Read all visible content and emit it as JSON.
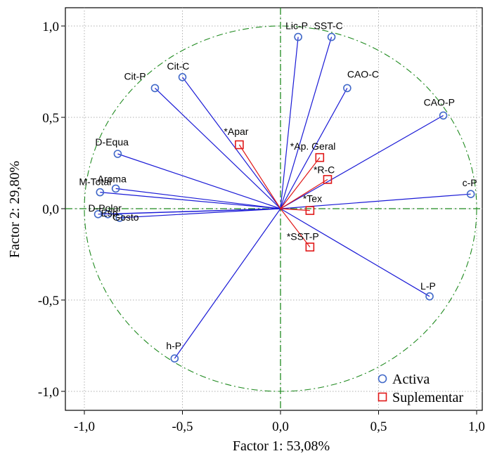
{
  "chart_data": {
    "type": "scatter",
    "subtype": "correlation-circle",
    "title": "",
    "xlabel": "Factor 1: 53,08%",
    "ylabel": "Factor 2: 29,80%",
    "xlim": [
      -1.05,
      1.05
    ],
    "ylim": [
      -1.1,
      1.1
    ],
    "xticks": [
      -1.0,
      -0.5,
      0.0,
      0.5,
      1.0
    ],
    "xtick_labels": [
      "-1,0",
      "-0,5",
      "0,0",
      "0,5",
      "1,0"
    ],
    "yticks": [
      -1.0,
      -0.5,
      0.0,
      0.5,
      1.0
    ],
    "ytick_labels": [
      "-1,0",
      "-0,5",
      "0,0",
      "0,5",
      "1,0"
    ],
    "grid": true,
    "unit_circle": true,
    "legend_position": "bottom-right",
    "series": [
      {
        "name": "Activa",
        "marker": "circle",
        "marker_color": "#4169c8",
        "vector_color": "#1a1ad6",
        "points": [
          {
            "label": "Lic-P",
            "x": 0.09,
            "y": 0.94
          },
          {
            "label": "SST-C",
            "x": 0.26,
            "y": 0.94
          },
          {
            "label": "CAO-C",
            "x": 0.34,
            "y": 0.66
          },
          {
            "label": "Cit-C",
            "x": -0.5,
            "y": 0.72
          },
          {
            "label": "Cit-P",
            "x": -0.64,
            "y": 0.66
          },
          {
            "label": "CAO-P",
            "x": 0.83,
            "y": 0.51
          },
          {
            "label": "D-Equa",
            "x": -0.83,
            "y": 0.3
          },
          {
            "label": "Aroma",
            "x": -0.84,
            "y": 0.11
          },
          {
            "label": "M-Total",
            "x": -0.92,
            "y": 0.09
          },
          {
            "label": "c-P",
            "x": 0.97,
            "y": 0.08
          },
          {
            "label": "D-Polar",
            "x": -0.93,
            "y": -0.03
          },
          {
            "label": "Esp",
            "x": -0.88,
            "y": -0.03
          },
          {
            "label": "Gosto",
            "x": -0.82,
            "y": -0.05
          },
          {
            "label": "L-P",
            "x": 0.76,
            "y": -0.48
          },
          {
            "label": "h-P",
            "x": -0.54,
            "y": -0.82
          }
        ]
      },
      {
        "name": "Suplementar",
        "marker": "square",
        "marker_color": "#e01818",
        "vector_color": "#e01818",
        "points": [
          {
            "label": "*Apar",
            "x": -0.21,
            "y": 0.35
          },
          {
            "label": "*Ap. Geral",
            "x": 0.2,
            "y": 0.28
          },
          {
            "label": "*R-C",
            "x": 0.24,
            "y": 0.16
          },
          {
            "label": "*Tex",
            "x": 0.15,
            "y": -0.01
          },
          {
            "label": "*SST-P",
            "x": 0.15,
            "y": -0.21
          }
        ]
      }
    ]
  }
}
